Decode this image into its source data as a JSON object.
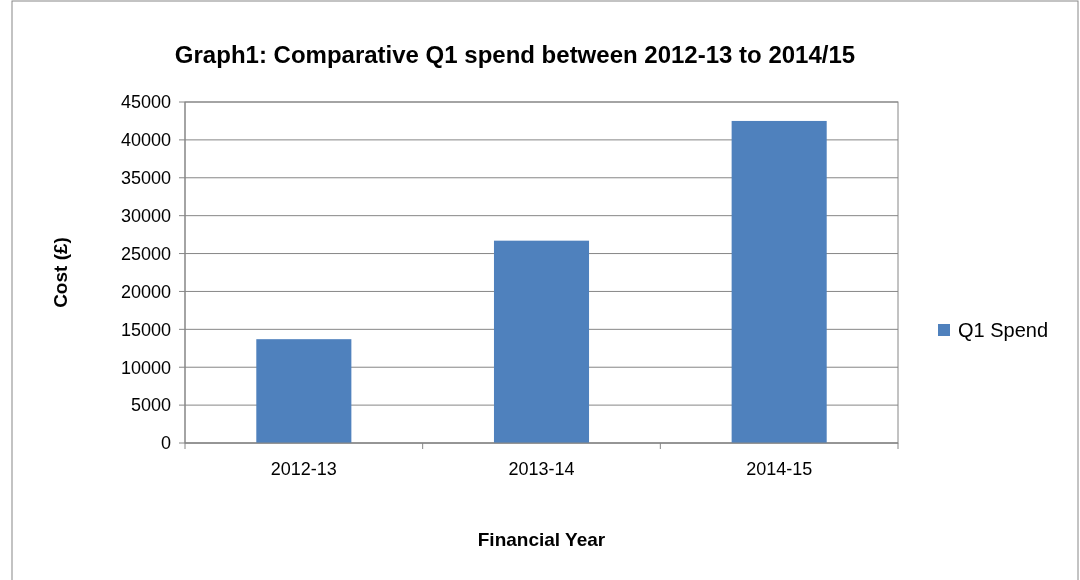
{
  "chart_data": {
    "type": "bar",
    "title": "Graph1: Comparative  Q1 spend between 2012-13 to 2014/15",
    "xlabel": "Financial Year",
    "ylabel": "Cost (£)",
    "categories": [
      "2012-13",
      "2013-14",
      "2014-15"
    ],
    "series": [
      {
        "name": "Q1 Spend",
        "color": "#4f81bd",
        "values": [
          13700,
          26700,
          42500
        ]
      }
    ],
    "ylim": [
      0,
      45000
    ],
    "yticks": [
      0,
      5000,
      10000,
      15000,
      20000,
      25000,
      30000,
      35000,
      40000,
      45000
    ],
    "grid": "y",
    "legend": "right"
  }
}
